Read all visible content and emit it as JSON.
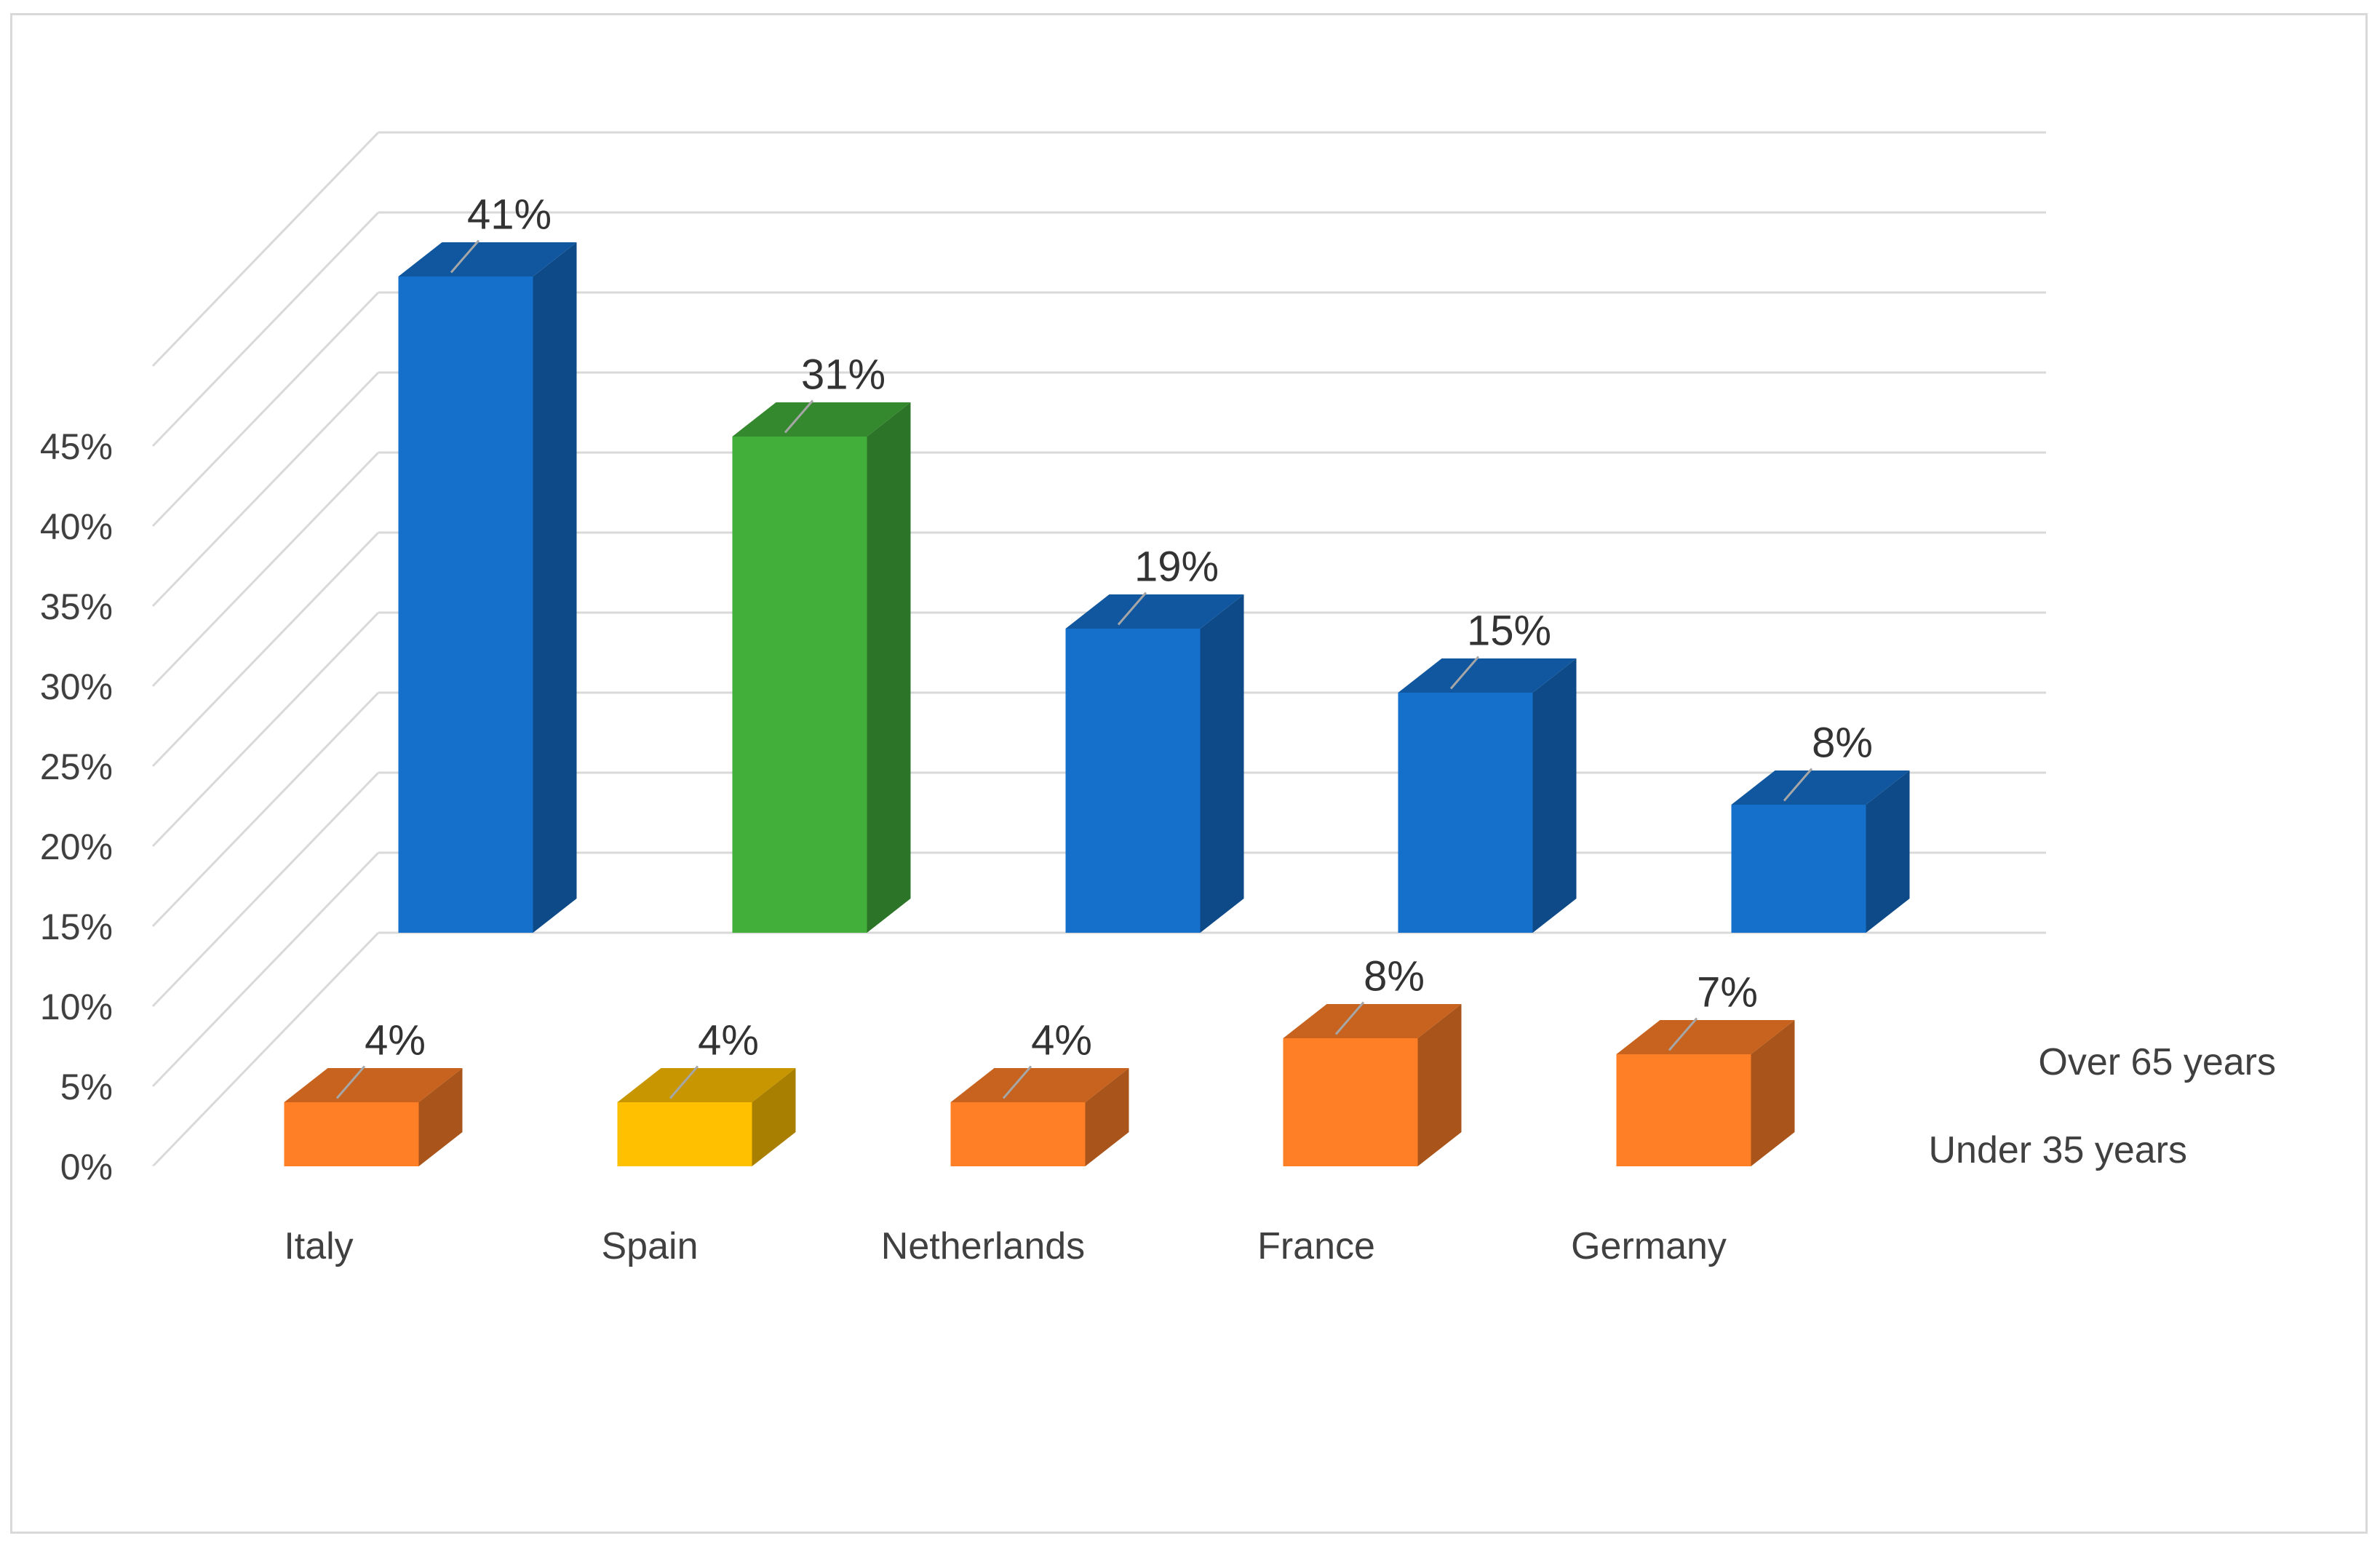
{
  "chart_data": {
    "type": "bar",
    "subtype": "3d-clustered-depth",
    "categories": [
      "Italy",
      "Spain",
      "Netherlands",
      "France",
      "Germany"
    ],
    "series": [
      {
        "name": "Under 35 years",
        "values": [
          4,
          4,
          4,
          8,
          7
        ],
        "labels": [
          "4%",
          "4%",
          "4%",
          "8%",
          "7%"
        ],
        "colors": [
          "#FF7F27",
          "#FFC000",
          "#FF7F27",
          "#FF7F27",
          "#FF7F27"
        ]
      },
      {
        "name": "Over 65 years",
        "values": [
          41,
          31,
          19,
          15,
          8
        ],
        "labels": [
          "41%",
          "31%",
          "19%",
          "15%",
          "8%"
        ],
        "colors": [
          "#1570CC",
          "#43AF3B",
          "#1570CC",
          "#1570CC",
          "#1570CC"
        ]
      }
    ],
    "yticks": [
      "0%",
      "5%",
      "10%",
      "15%",
      "20%",
      "25%",
      "30%",
      "35%",
      "40%",
      "45%"
    ],
    "ylim": [
      0,
      45
    ],
    "grid": true,
    "legend": "none"
  }
}
